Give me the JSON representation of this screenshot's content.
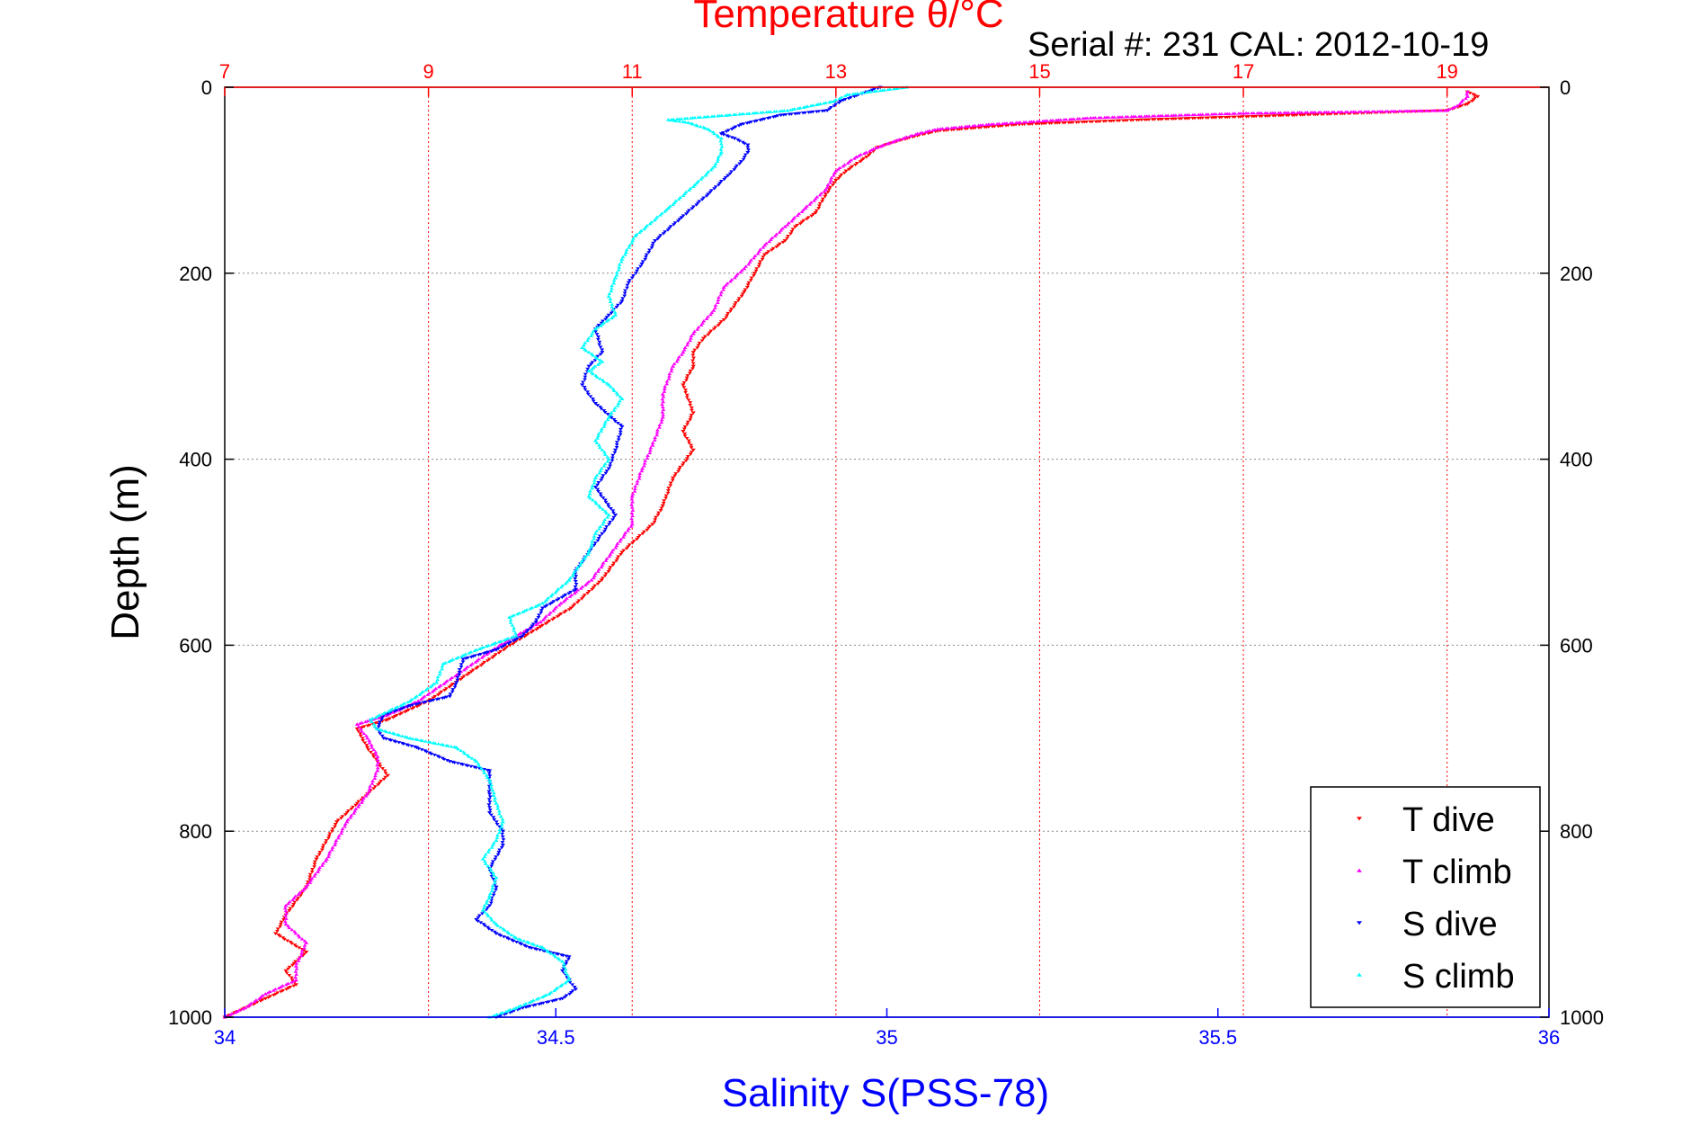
{
  "chart_data": {
    "type": "scatter",
    "title": "Temperature θ/°C",
    "annotation": "Serial #: 231  CAL: 2012-10-19",
    "ylabel": "Depth (m)",
    "xlabel_bottom": "Salinity S(PSS-78)",
    "ylim": [
      0,
      1000
    ],
    "y_reversed": true,
    "yticks": [
      0,
      200,
      400,
      600,
      800,
      1000
    ],
    "top_axis": {
      "quantity": "Temperature",
      "lim": [
        7,
        20
      ],
      "ticks": [
        7,
        9,
        11,
        13,
        15,
        17,
        19
      ]
    },
    "bottom_axis": {
      "quantity": "Salinity",
      "lim": [
        34,
        36
      ],
      "ticks": [
        "34",
        "34.5",
        "35",
        "35.5",
        "36"
      ]
    },
    "grid": true,
    "legend_position": "bottom-right",
    "colors": {
      "temp_axis": "#ff0000",
      "sal_axis": "#0000ff",
      "t_dive": "#ff0000",
      "t_climb": "#ff00ff",
      "s_dive": "#0000ff",
      "s_climb": "#00ffff",
      "grid": "#888888"
    },
    "series": [
      {
        "name": "T dive",
        "axis": "top",
        "points": [
          [
            19.2,
            5
          ],
          [
            19.3,
            10
          ],
          [
            19.2,
            18
          ],
          [
            19.0,
            25
          ],
          [
            17.5,
            30
          ],
          [
            16.0,
            35
          ],
          [
            14.8,
            40
          ],
          [
            14.0,
            47
          ],
          [
            13.8,
            52
          ],
          [
            13.6,
            58
          ],
          [
            13.4,
            65
          ],
          [
            13.3,
            75
          ],
          [
            13.1,
            90
          ],
          [
            13.0,
            100
          ],
          [
            12.9,
            115
          ],
          [
            12.8,
            135
          ],
          [
            12.6,
            150
          ],
          [
            12.5,
            165
          ],
          [
            12.3,
            180
          ],
          [
            12.2,
            200
          ],
          [
            12.1,
            220
          ],
          [
            11.9,
            250
          ],
          [
            11.7,
            270
          ],
          [
            11.6,
            285
          ],
          [
            11.6,
            300
          ],
          [
            11.5,
            320
          ],
          [
            11.6,
            350
          ],
          [
            11.5,
            370
          ],
          [
            11.6,
            390
          ],
          [
            11.4,
            420
          ],
          [
            11.3,
            450
          ],
          [
            11.2,
            470
          ],
          [
            10.9,
            500
          ],
          [
            10.7,
            530
          ],
          [
            10.4,
            560
          ],
          [
            10.1,
            580
          ],
          [
            9.8,
            600
          ],
          [
            9.4,
            630
          ],
          [
            9.0,
            660
          ],
          [
            8.6,
            680
          ],
          [
            8.3,
            690
          ],
          [
            8.4,
            710
          ],
          [
            8.5,
            725
          ],
          [
            8.6,
            740
          ],
          [
            8.4,
            760
          ],
          [
            8.1,
            790
          ],
          [
            7.9,
            830
          ],
          [
            7.8,
            860
          ],
          [
            7.6,
            890
          ],
          [
            7.5,
            910
          ],
          [
            7.8,
            930
          ],
          [
            7.6,
            950
          ],
          [
            7.7,
            965
          ],
          [
            7.4,
            980
          ],
          [
            7.1,
            995
          ],
          [
            7.0,
            1000
          ]
        ]
      },
      {
        "name": "T climb",
        "axis": "top",
        "points": [
          [
            19.2,
            5
          ],
          [
            19.2,
            10
          ],
          [
            19.1,
            20
          ],
          [
            19.0,
            25
          ],
          [
            17.0,
            28
          ],
          [
            15.5,
            33
          ],
          [
            14.5,
            40
          ],
          [
            14.0,
            45
          ],
          [
            13.8,
            50
          ],
          [
            13.6,
            57
          ],
          [
            13.4,
            65
          ],
          [
            13.2,
            75
          ],
          [
            13.0,
            90
          ],
          [
            12.9,
            110
          ],
          [
            12.7,
            130
          ],
          [
            12.5,
            150
          ],
          [
            12.3,
            170
          ],
          [
            12.1,
            195
          ],
          [
            11.9,
            215
          ],
          [
            11.8,
            240
          ],
          [
            11.6,
            265
          ],
          [
            11.5,
            285
          ],
          [
            11.4,
            300
          ],
          [
            11.3,
            330
          ],
          [
            11.3,
            355
          ],
          [
            11.2,
            385
          ],
          [
            11.1,
            410
          ],
          [
            11.0,
            440
          ],
          [
            11.0,
            470
          ],
          [
            10.8,
            500
          ],
          [
            10.6,
            530
          ],
          [
            10.3,
            555
          ],
          [
            10.1,
            575
          ],
          [
            9.7,
            600
          ],
          [
            9.3,
            630
          ],
          [
            8.9,
            660
          ],
          [
            8.6,
            675
          ],
          [
            8.3,
            685
          ],
          [
            8.4,
            700
          ],
          [
            8.5,
            720
          ],
          [
            8.5,
            735
          ],
          [
            8.4,
            760
          ],
          [
            8.2,
            790
          ],
          [
            8.0,
            830
          ],
          [
            7.8,
            860
          ],
          [
            7.6,
            880
          ],
          [
            7.6,
            900
          ],
          [
            7.8,
            920
          ],
          [
            7.7,
            945
          ],
          [
            7.7,
            960
          ],
          [
            7.4,
            975
          ],
          [
            7.2,
            990
          ],
          [
            7.0,
            1000
          ]
        ]
      },
      {
        "name": "S dive",
        "axis": "bottom",
        "points": [
          [
            34.99,
            0
          ],
          [
            34.97,
            5
          ],
          [
            34.93,
            15
          ],
          [
            34.91,
            25
          ],
          [
            34.84,
            30
          ],
          [
            34.78,
            40
          ],
          [
            34.75,
            50
          ],
          [
            34.77,
            55
          ],
          [
            34.79,
            62
          ],
          [
            34.79,
            70
          ],
          [
            34.78,
            80
          ],
          [
            34.76,
            95
          ],
          [
            34.73,
            115
          ],
          [
            34.69,
            140
          ],
          [
            34.65,
            165
          ],
          [
            34.63,
            190
          ],
          [
            34.61,
            210
          ],
          [
            34.6,
            230
          ],
          [
            34.58,
            245
          ],
          [
            34.56,
            260
          ],
          [
            34.57,
            285
          ],
          [
            34.55,
            300
          ],
          [
            34.54,
            320
          ],
          [
            34.56,
            340
          ],
          [
            34.6,
            365
          ],
          [
            34.59,
            390
          ],
          [
            34.58,
            410
          ],
          [
            34.56,
            430
          ],
          [
            34.59,
            460
          ],
          [
            34.57,
            480
          ],
          [
            34.55,
            500
          ],
          [
            34.53,
            520
          ],
          [
            34.53,
            540
          ],
          [
            34.48,
            560
          ],
          [
            34.47,
            575
          ],
          [
            34.45,
            590
          ],
          [
            34.41,
            605
          ],
          [
            34.36,
            615
          ],
          [
            34.35,
            640
          ],
          [
            34.34,
            655
          ],
          [
            34.28,
            665
          ],
          [
            34.24,
            675
          ],
          [
            34.23,
            690
          ],
          [
            34.24,
            700
          ],
          [
            34.29,
            710
          ],
          [
            34.34,
            725
          ],
          [
            34.4,
            735
          ],
          [
            34.4,
            760
          ],
          [
            34.4,
            780
          ],
          [
            34.42,
            800
          ],
          [
            34.42,
            815
          ],
          [
            34.4,
            840
          ],
          [
            34.41,
            860
          ],
          [
            34.4,
            880
          ],
          [
            34.38,
            895
          ],
          [
            34.41,
            910
          ],
          [
            34.46,
            925
          ],
          [
            34.52,
            935
          ],
          [
            34.51,
            950
          ],
          [
            34.53,
            970
          ],
          [
            34.51,
            980
          ],
          [
            34.45,
            990
          ],
          [
            34.41,
            1000
          ]
        ]
      },
      {
        "name": "S climb",
        "axis": "bottom",
        "points": [
          [
            35.03,
            0
          ],
          [
            34.94,
            8
          ],
          [
            34.92,
            15
          ],
          [
            34.85,
            25
          ],
          [
            34.76,
            30
          ],
          [
            34.67,
            35
          ],
          [
            34.7,
            38
          ],
          [
            34.73,
            45
          ],
          [
            34.75,
            55
          ],
          [
            34.75,
            70
          ],
          [
            34.74,
            85
          ],
          [
            34.71,
            105
          ],
          [
            34.67,
            130
          ],
          [
            34.62,
            160
          ],
          [
            34.6,
            185
          ],
          [
            34.59,
            205
          ],
          [
            34.58,
            225
          ],
          [
            34.59,
            245
          ],
          [
            34.56,
            260
          ],
          [
            34.54,
            280
          ],
          [
            34.57,
            295
          ],
          [
            34.55,
            305
          ],
          [
            34.58,
            320
          ],
          [
            34.6,
            335
          ],
          [
            34.58,
            355
          ],
          [
            34.56,
            380
          ],
          [
            34.58,
            400
          ],
          [
            34.56,
            420
          ],
          [
            34.55,
            440
          ],
          [
            34.58,
            460
          ],
          [
            34.56,
            480
          ],
          [
            34.55,
            500
          ],
          [
            34.52,
            530
          ],
          [
            34.48,
            555
          ],
          [
            34.43,
            570
          ],
          [
            34.44,
            590
          ],
          [
            34.38,
            605
          ],
          [
            34.33,
            620
          ],
          [
            34.32,
            640
          ],
          [
            34.28,
            660
          ],
          [
            34.22,
            680
          ],
          [
            34.23,
            690
          ],
          [
            34.28,
            700
          ],
          [
            34.35,
            710
          ],
          [
            34.38,
            725
          ],
          [
            34.4,
            745
          ],
          [
            34.41,
            770
          ],
          [
            34.42,
            790
          ],
          [
            34.41,
            810
          ],
          [
            34.39,
            830
          ],
          [
            34.41,
            850
          ],
          [
            34.4,
            870
          ],
          [
            34.39,
            885
          ],
          [
            34.41,
            900
          ],
          [
            34.44,
            915
          ],
          [
            34.48,
            925
          ],
          [
            34.51,
            940
          ],
          [
            34.52,
            960
          ],
          [
            34.49,
            975
          ],
          [
            34.44,
            990
          ],
          [
            34.4,
            1000
          ]
        ]
      }
    ]
  }
}
